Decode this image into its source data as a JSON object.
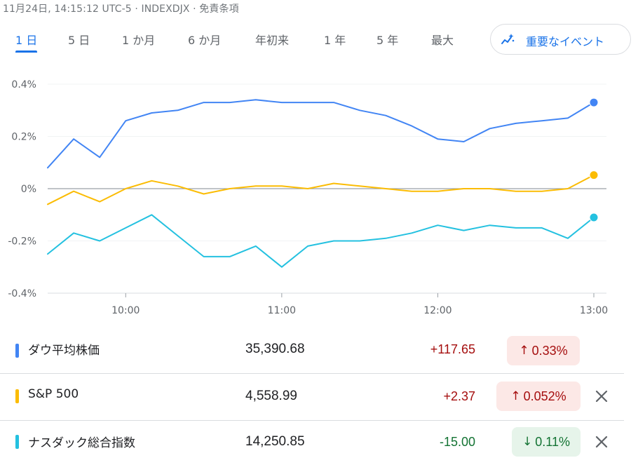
{
  "header": {
    "timestamp": "11月24日, 14:15:12 UTC-5",
    "ticker": "INDEXDJX",
    "disclaimer": "免責条項",
    "separator": "·"
  },
  "tabs": [
    {
      "label": "1 日",
      "active": true
    },
    {
      "label": "5 日",
      "active": false
    },
    {
      "label": "1 か月",
      "active": false
    },
    {
      "label": "6 か月",
      "active": false
    },
    {
      "label": "年初来",
      "active": false
    },
    {
      "label": "1 年",
      "active": false
    },
    {
      "label": "5 年",
      "active": false
    },
    {
      "label": "最大",
      "active": false
    }
  ],
  "events_button": {
    "label": "重要なイベント",
    "icon": "trending-sparkle-icon"
  },
  "colors": {
    "dow": "#4285f4",
    "sp500": "#fbbc04",
    "nasdaq": "#24c1e0",
    "positive_text": "#a50e0e",
    "positive_bg": "#fce8e6",
    "negative_text": "#137333",
    "negative_bg": "#e6f4ea",
    "zero_line": "#9aa0a6",
    "grid": "#f1f3f4",
    "axis_text": "#5f6368",
    "active_tab": "#1a73e8"
  },
  "chart_data": {
    "type": "line",
    "xlabel": "",
    "ylabel": "",
    "x_ticks": [
      "10:00",
      "11:00",
      "12:00",
      "13:00"
    ],
    "y_ticks": [
      "0.4%",
      "0.2%",
      "0%",
      "-0.2%",
      "-0.4%"
    ],
    "y_tick_values": [
      0.4,
      0.2,
      0,
      -0.2,
      -0.4
    ],
    "ylim": [
      -0.4,
      0.4
    ],
    "x_range": [
      "09:30",
      "13:05"
    ],
    "grid": "horizontal",
    "zero_line": true,
    "end_markers": true,
    "x": [
      "09:30",
      "09:40",
      "09:50",
      "10:00",
      "10:10",
      "10:20",
      "10:30",
      "10:40",
      "10:50",
      "11:00",
      "11:10",
      "11:20",
      "11:30",
      "11:40",
      "11:50",
      "12:00",
      "12:10",
      "12:20",
      "12:30",
      "12:40",
      "12:50",
      "13:00"
    ],
    "series": [
      {
        "name": "ダウ平均株価",
        "color_key": "dow",
        "values": [
          0.08,
          0.19,
          0.12,
          0.26,
          0.29,
          0.3,
          0.33,
          0.33,
          0.34,
          0.33,
          0.33,
          0.33,
          0.3,
          0.28,
          0.24,
          0.19,
          0.18,
          0.23,
          0.25,
          0.26,
          0.27,
          0.33
        ]
      },
      {
        "name": "S&P 500",
        "color_key": "sp500",
        "values": [
          -0.06,
          -0.01,
          -0.05,
          0.0,
          0.03,
          0.01,
          -0.02,
          0.0,
          0.01,
          0.01,
          0.0,
          0.02,
          0.01,
          0.0,
          -0.01,
          -0.01,
          0.0,
          0.0,
          -0.01,
          -0.01,
          0.0,
          0.052
        ]
      },
      {
        "name": "ナスダック総合指数",
        "color_key": "nasdaq",
        "values": [
          -0.25,
          -0.17,
          -0.2,
          -0.15,
          -0.1,
          -0.18,
          -0.26,
          -0.26,
          -0.22,
          -0.3,
          -0.22,
          -0.2,
          -0.2,
          -0.19,
          -0.17,
          -0.14,
          -0.16,
          -0.14,
          -0.15,
          -0.15,
          -0.19,
          -0.11
        ]
      }
    ]
  },
  "rows": [
    {
      "name": "ダウ平均株価",
      "color_key": "dow",
      "price": "35,390.68",
      "change": "+117.65",
      "percent": "0.33%",
      "direction": "up",
      "arrow": "↑",
      "removable": false
    },
    {
      "name": "S&P 500",
      "color_key": "sp500",
      "price": "4,558.99",
      "change": "+2.37",
      "percent": "0.052%",
      "direction": "up",
      "arrow": "↑",
      "removable": true
    },
    {
      "name": "ナスダック総合指数",
      "color_key": "nasdaq",
      "price": "14,250.85",
      "change": "-15.00",
      "percent": "0.11%",
      "direction": "down",
      "arrow": "↓",
      "removable": true
    }
  ]
}
